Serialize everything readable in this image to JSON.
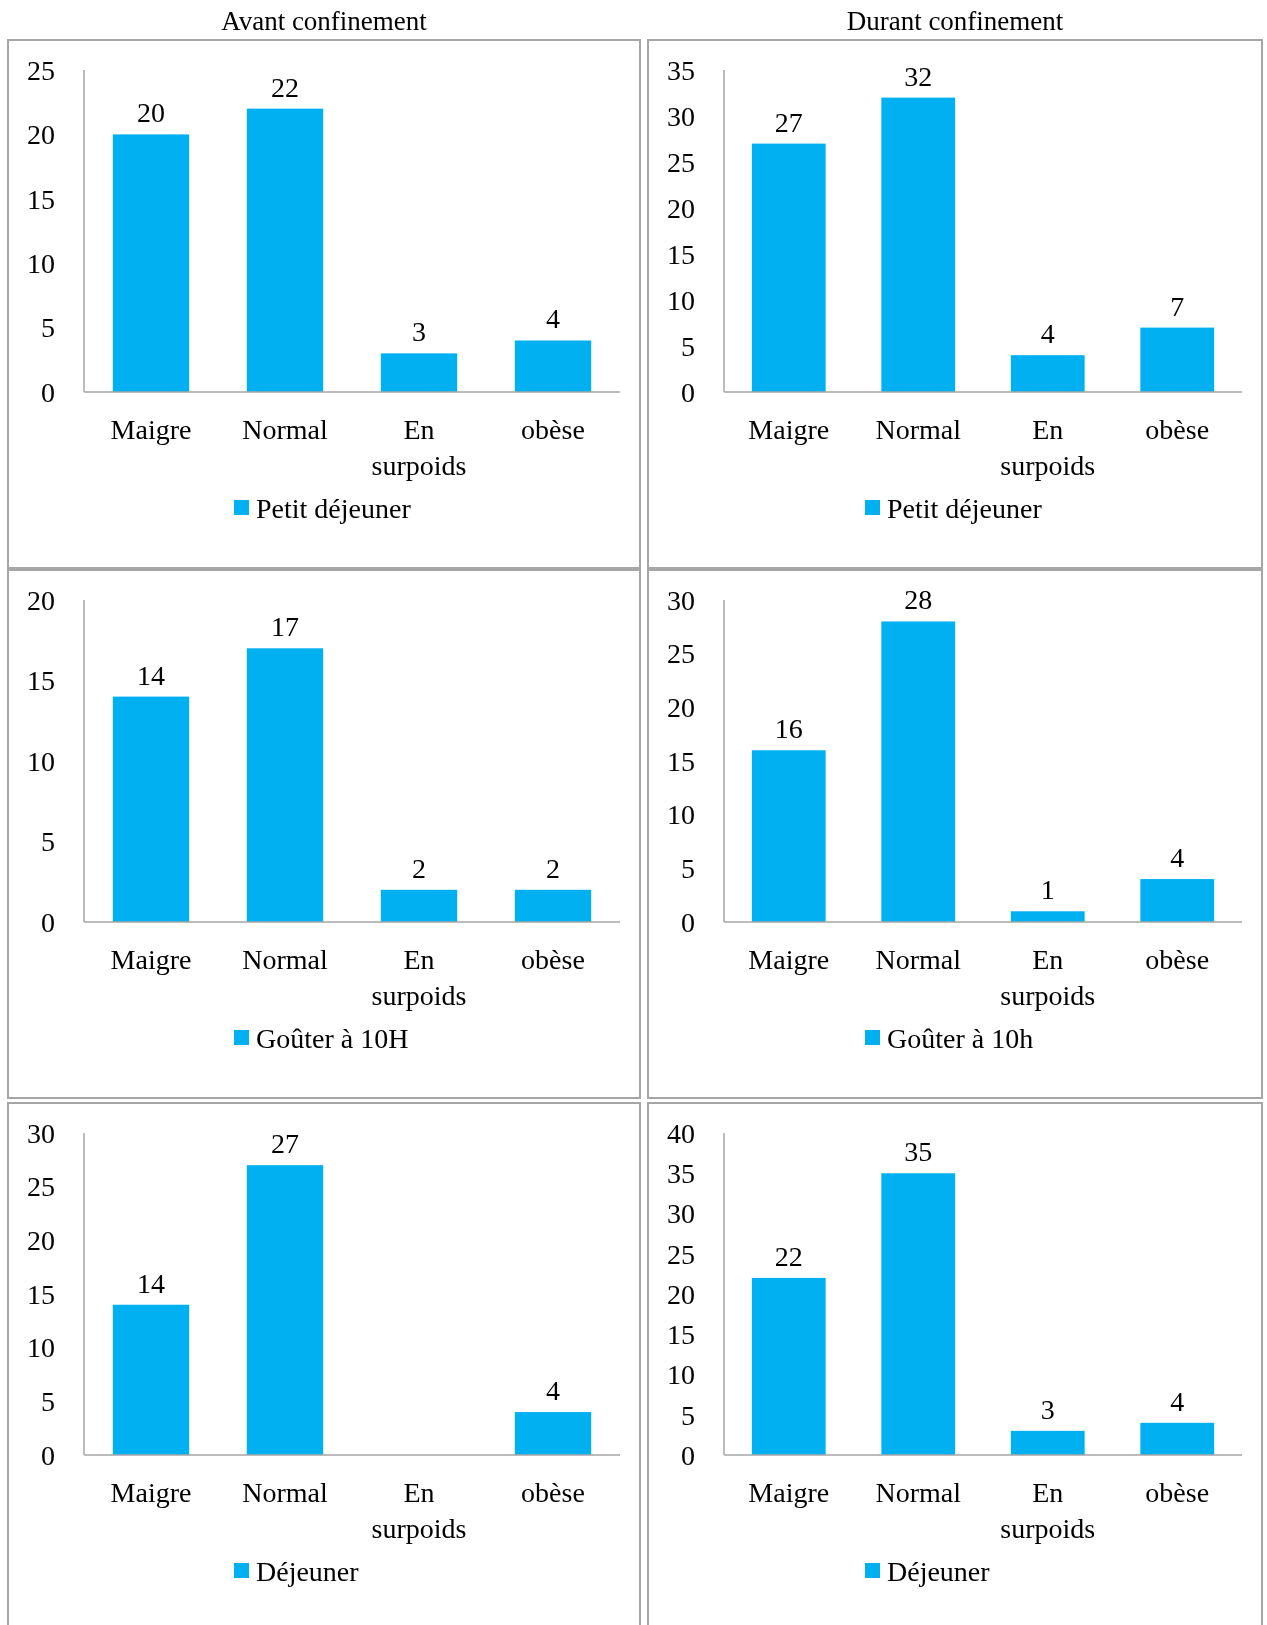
{
  "chart_data": [
    {
      "type": "bar",
      "title": "Avant confinement",
      "categories": [
        "Maigre",
        "Normal",
        "En surpoids",
        "obèse"
      ],
      "series": [
        {
          "name": "Petit déjeuner",
          "color": "#00b0f0",
          "values": [
            20,
            22,
            3,
            4
          ]
        }
      ],
      "ylim": [
        0,
        25
      ],
      "yticks": [
        0,
        5,
        10,
        15,
        20,
        25
      ],
      "data_labels": true,
      "legend": "bottom",
      "grid": false
    },
    {
      "type": "bar",
      "title": "Durant confinement",
      "categories": [
        "Maigre",
        "Normal",
        "En surpoids",
        "obèse"
      ],
      "series": [
        {
          "name": "Petit déjeuner",
          "color": "#00b0f0",
          "values": [
            27,
            32,
            4,
            7
          ]
        }
      ],
      "ylim": [
        0,
        35
      ],
      "yticks": [
        0,
        5,
        10,
        15,
        20,
        25,
        30,
        35
      ],
      "data_labels": true,
      "legend": "bottom",
      "grid": false
    },
    {
      "type": "bar",
      "categories": [
        "Maigre",
        "Normal",
        "En surpoids",
        "obèse"
      ],
      "series": [
        {
          "name": "Goûter à 10H",
          "color": "#00b0f0",
          "values": [
            14,
            17,
            2,
            2
          ]
        }
      ],
      "ylim": [
        0,
        20
      ],
      "yticks": [
        0,
        5,
        10,
        15,
        20
      ],
      "data_labels": true,
      "legend": "bottom",
      "grid": false
    },
    {
      "type": "bar",
      "categories": [
        "Maigre",
        "Normal",
        "En surpoids",
        "obèse"
      ],
      "series": [
        {
          "name": "Goûter à 10h",
          "color": "#00b0f0",
          "values": [
            16,
            28,
            1,
            4
          ]
        }
      ],
      "ylim": [
        0,
        30
      ],
      "yticks": [
        0,
        5,
        10,
        15,
        20,
        25,
        30
      ],
      "data_labels": true,
      "legend": "bottom",
      "grid": false
    },
    {
      "type": "bar",
      "categories": [
        "Maigre",
        "Normal",
        "En surpoids",
        "obèse"
      ],
      "series": [
        {
          "name": "Déjeuner",
          "color": "#00b0f0",
          "values": [
            14,
            27,
            null,
            4
          ]
        }
      ],
      "ylim": [
        0,
        30
      ],
      "yticks": [
        0,
        5,
        10,
        15,
        20,
        25,
        30
      ],
      "data_labels": true,
      "legend": "bottom",
      "grid": false
    },
    {
      "type": "bar",
      "categories": [
        "Maigre",
        "Normal",
        "En surpoids",
        "obèse"
      ],
      "series": [
        {
          "name": "Déjeuner",
          "color": "#00b0f0",
          "values": [
            22,
            35,
            3,
            4
          ]
        }
      ],
      "ylim": [
        0,
        40
      ],
      "yticks": [
        0,
        5,
        10,
        15,
        20,
        25,
        30,
        35,
        40
      ],
      "data_labels": true,
      "legend": "bottom",
      "grid": false
    }
  ]
}
